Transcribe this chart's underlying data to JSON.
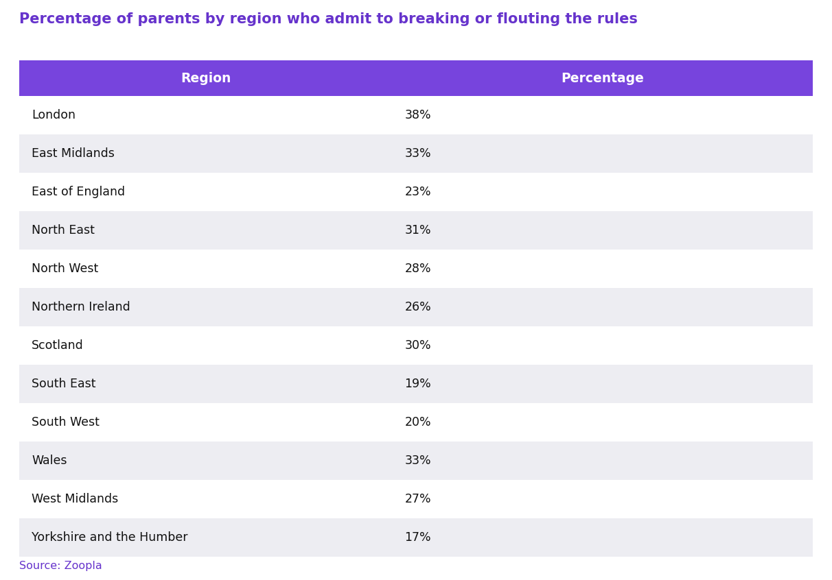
{
  "title": "Percentage of parents by region who admit to breaking or flouting the rules",
  "title_color": "#6633cc",
  "source_text": "Source: Zoopla",
  "source_color": "#6633cc",
  "header_bg_color": "#7744dd",
  "header_text_color": "#ffffff",
  "header_labels": [
    "Region",
    "Percentage"
  ],
  "col_split": 0.47,
  "rows": [
    {
      "region": "London",
      "percentage": "38%",
      "shaded": false
    },
    {
      "region": "East Midlands",
      "percentage": "33%",
      "shaded": true
    },
    {
      "region": "East of England",
      "percentage": "23%",
      "shaded": false
    },
    {
      "region": "North East",
      "percentage": "31%",
      "shaded": true
    },
    {
      "region": "North West",
      "percentage": "28%",
      "shaded": false
    },
    {
      "region": "Northern Ireland",
      "percentage": "26%",
      "shaded": true
    },
    {
      "region": "Scotland",
      "percentage": "30%",
      "shaded": false
    },
    {
      "region": "South East",
      "percentage": "19%",
      "shaded": true
    },
    {
      "region": "South West",
      "percentage": "20%",
      "shaded": false
    },
    {
      "region": "Wales",
      "percentage": "33%",
      "shaded": true
    },
    {
      "region": "West Midlands",
      "percentage": "27%",
      "shaded": false
    },
    {
      "region": "Yorkshire and the Humber",
      "percentage": "17%",
      "shaded": true
    }
  ],
  "row_bg_shaded": "#ededf2",
  "row_bg_white": "#ffffff",
  "row_text_color": "#111111",
  "figsize": [
    12.12,
    8.46
  ],
  "dpi": 100
}
